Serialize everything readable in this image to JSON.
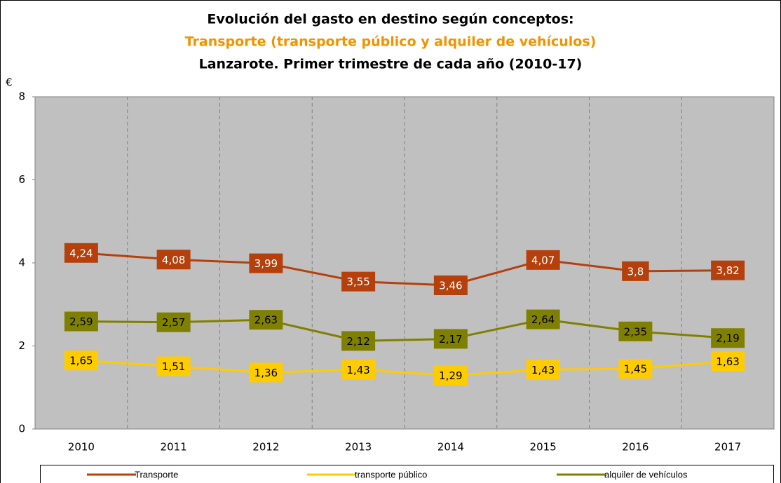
{
  "chart_data": {
    "type": "line",
    "title": "Evolución del gasto en destino según conceptos:",
    "subtitle": "Transporte (transporte público y alquiler de vehículos)",
    "subtitle_color": "#f39200",
    "caption": "Lanzarote. Primer trimestre de cada año (2010-17)",
    "y_label": "€",
    "categories": [
      "2010",
      "2011",
      "2012",
      "2013",
      "2014",
      "2015",
      "2016",
      "2017"
    ],
    "series": [
      {
        "name": "Transporte",
        "color": "#b5400b",
        "label_text_color": "#ffffff",
        "values": [
          4.24,
          4.08,
          3.99,
          3.55,
          3.46,
          4.07,
          3.8,
          3.82
        ],
        "value_labels": [
          "4,24",
          "4,08",
          "3,99",
          "3,55",
          "3,46",
          "4,07",
          "3,8",
          "3,82"
        ]
      },
      {
        "name": "transporte público",
        "color": "#ffcc00",
        "label_text_color": "#000000",
        "values": [
          1.65,
          1.51,
          1.36,
          1.43,
          1.29,
          1.43,
          1.45,
          1.63
        ],
        "value_labels": [
          "1,65",
          "1,51",
          "1,36",
          "1,43",
          "1,29",
          "1,43",
          "1,45",
          "1,63"
        ]
      },
      {
        "name": "alquiler de vehículos",
        "color": "#808000",
        "label_text_color": "#000000",
        "values": [
          2.59,
          2.57,
          2.63,
          2.12,
          2.17,
          2.64,
          2.35,
          2.19
        ],
        "value_labels": [
          "2,59",
          "2,57",
          "2,63",
          "2,12",
          "2,17",
          "2,64",
          "2,35",
          "2,19"
        ]
      }
    ],
    "ylim": [
      0,
      8
    ],
    "yticks": [
      0,
      2,
      4,
      6,
      8
    ],
    "plot_background": "#c0c0c0",
    "vertical_grid": "dashed",
    "legend": "bottom"
  }
}
